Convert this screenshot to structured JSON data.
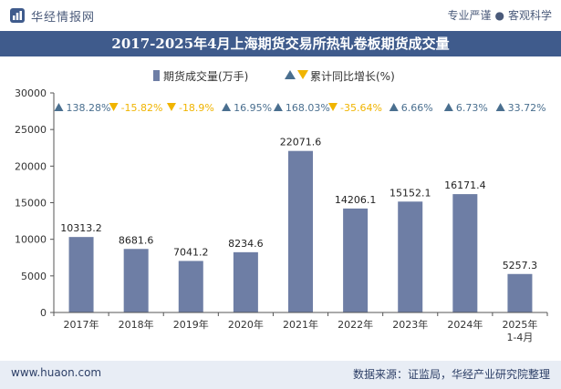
{
  "header": {
    "brand": "华经情报网",
    "tagline_left": "专业严谨",
    "tagline_sep": "●",
    "tagline_right": "客观科学"
  },
  "colors": {
    "bar": "#6e7ea5",
    "title_bg": "#3f5b8c",
    "up": "#4a6f8f",
    "down": "#f0b400",
    "footer_bg": "#e8edf5"
  },
  "footer": {
    "website": "www.huaon.com",
    "source": "数据来源：证监局，华经产业研究院整理"
  },
  "chart_data": {
    "type": "bar",
    "title": "2017-2025年4月上海期货交易所热轧卷板期货成交量",
    "categories": [
      "2017年",
      "2018年",
      "2019年",
      "2020年",
      "2021年",
      "2022年",
      "2023年",
      "2024年",
      "2025年\n1-4月"
    ],
    "series": [
      {
        "name": "期货成交量(万手)",
        "values": [
          10313.2,
          8681.6,
          7041.2,
          8234.6,
          22071.6,
          14206.1,
          15152.1,
          16171.4,
          5257.3
        ],
        "labels": [
          "10313.2",
          "8681.6",
          "7041.2",
          "8234.6",
          "22071.6",
          "14206.1",
          "15152.1",
          "16171.4",
          "5257.3"
        ]
      },
      {
        "name": "累计同比增长(%)",
        "values": [
          138.28,
          -15.82,
          -18.9,
          16.95,
          168.03,
          -35.64,
          6.66,
          6.73,
          33.72
        ],
        "labels": [
          "138.28%",
          "-15.82%",
          "-18.9%",
          "16.95%",
          "168.03%",
          "-35.64%",
          "6.66%",
          "6.73%",
          "33.72%"
        ]
      }
    ],
    "ylim": [
      0,
      30000
    ],
    "yticks": [
      "0",
      "5000",
      "10000",
      "15000",
      "20000",
      "25000",
      "30000"
    ],
    "legend_position": "top-center",
    "grid": false
  }
}
